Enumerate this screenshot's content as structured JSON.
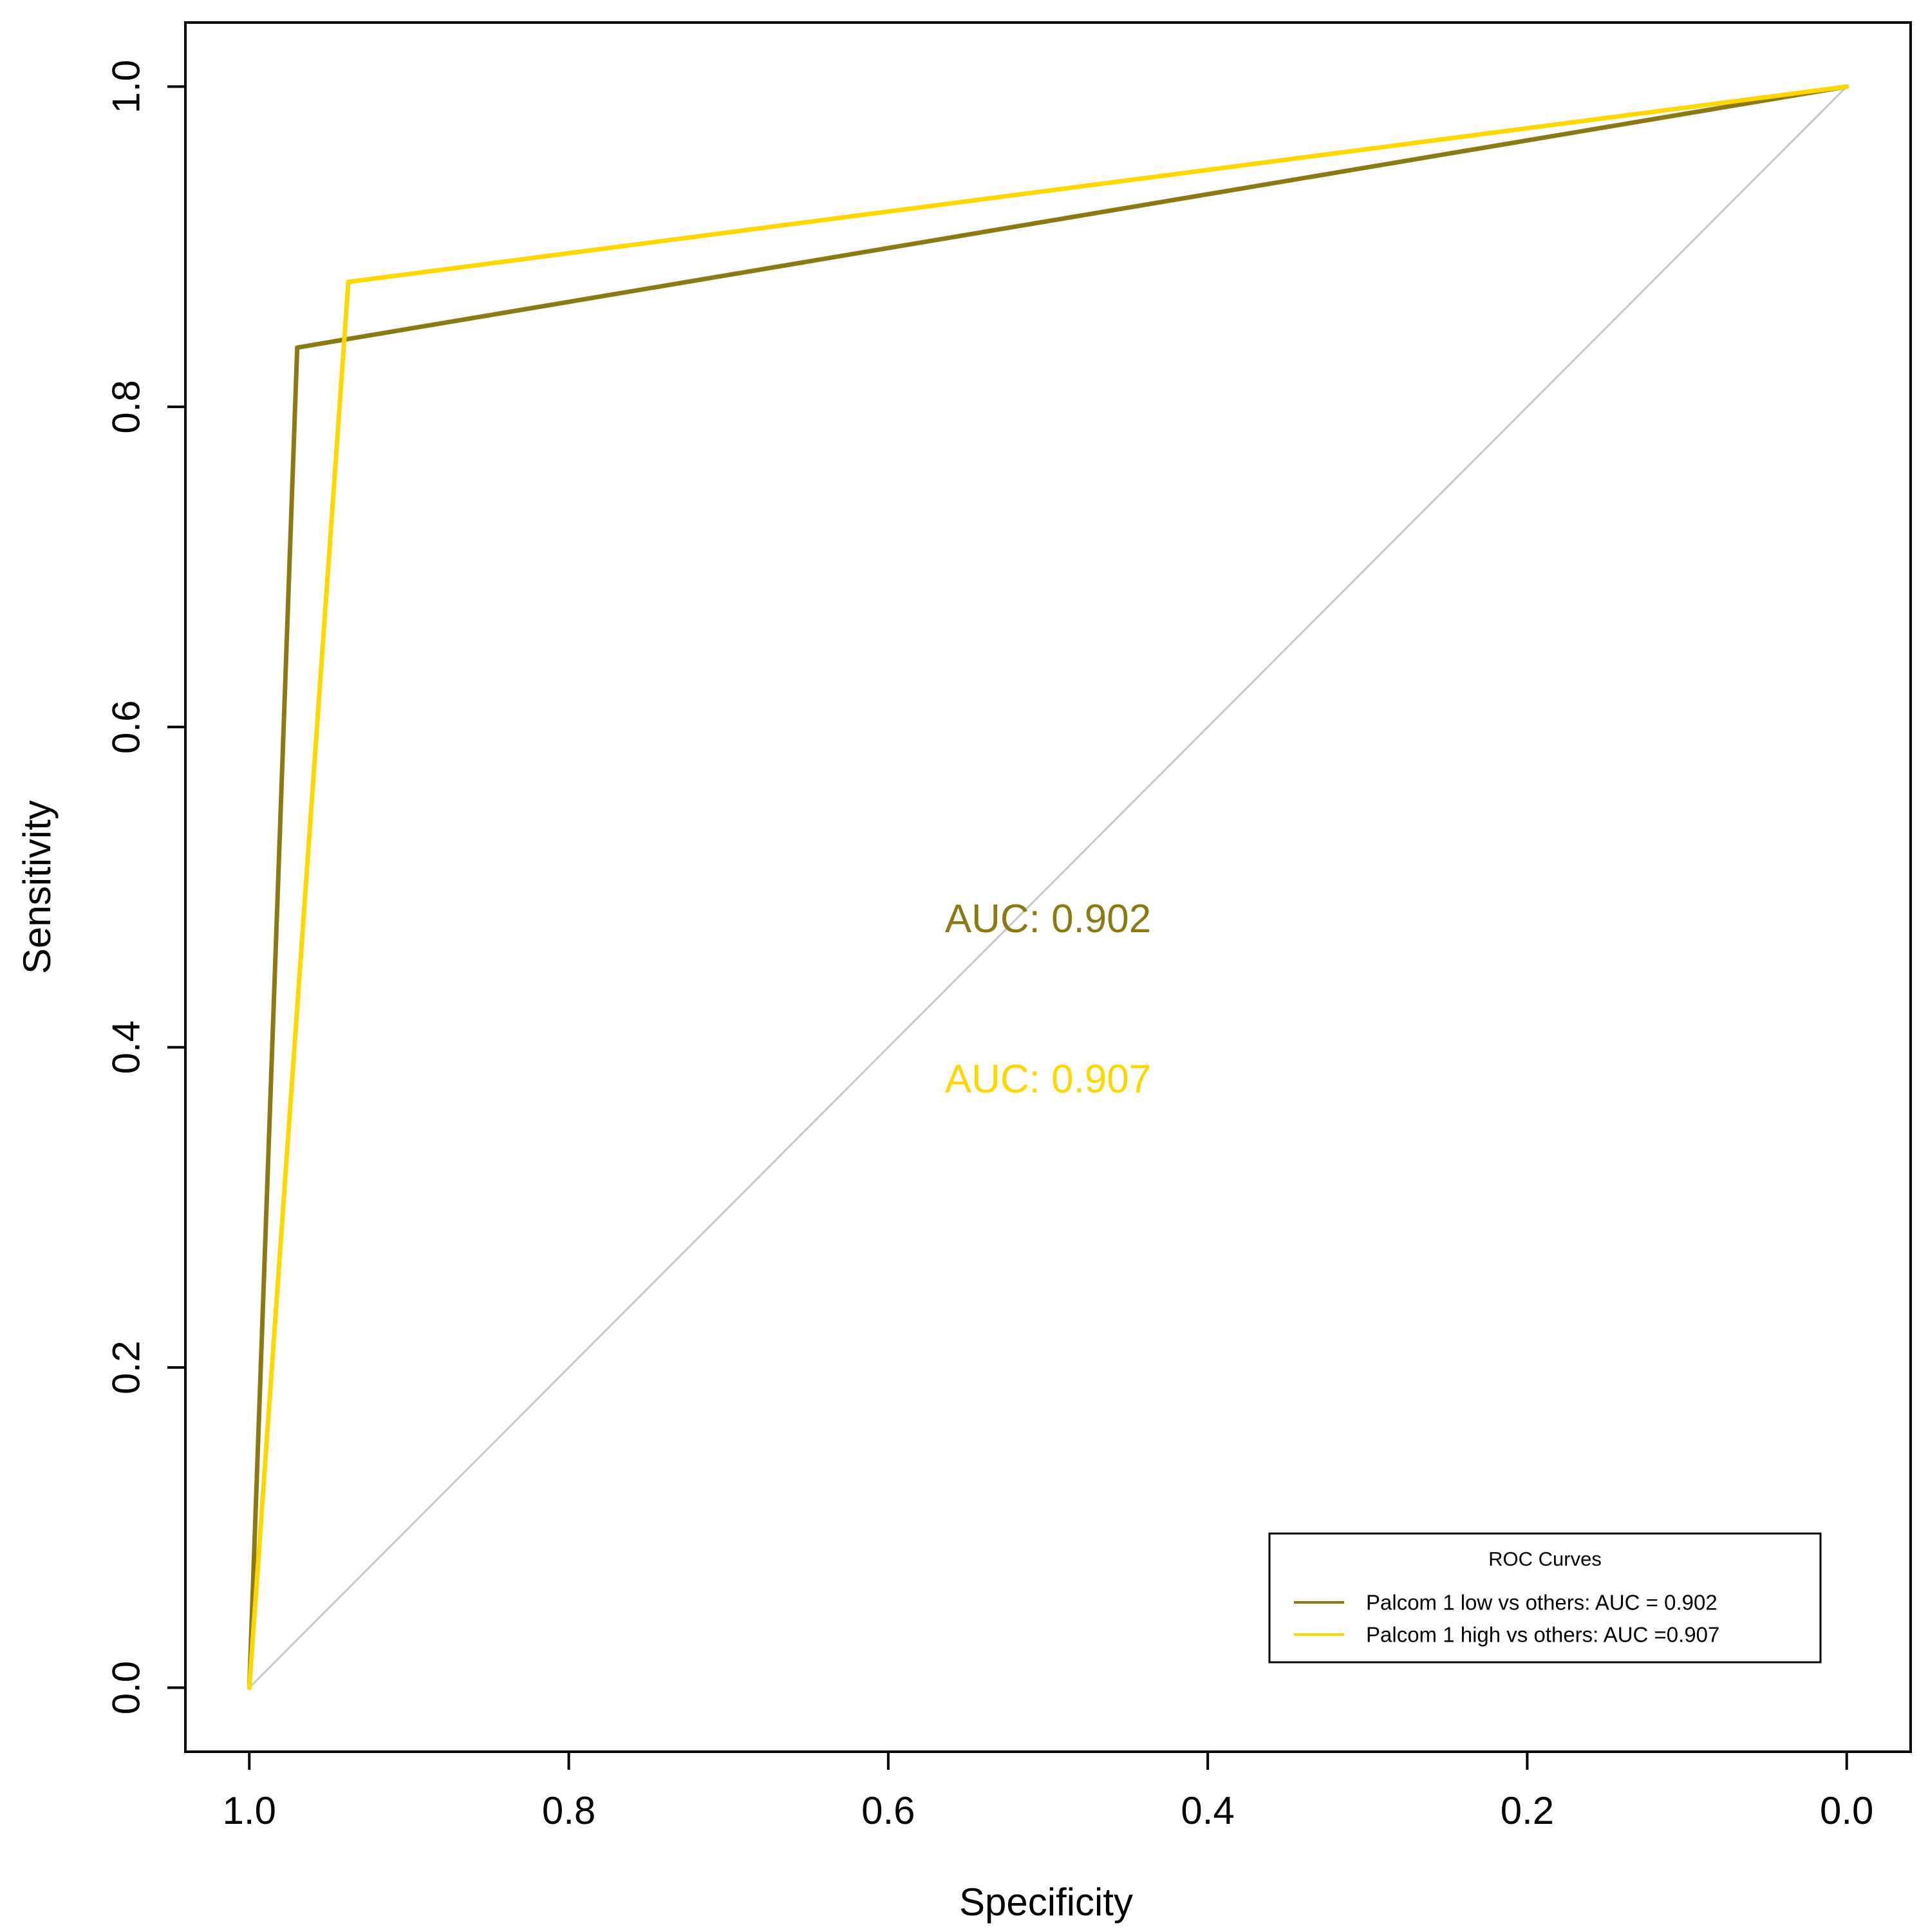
{
  "chart_data": {
    "type": "line",
    "xlabel": "Specificity",
    "ylabel": "Sensitivity",
    "xlim": [
      1.04,
      -0.04
    ],
    "ylim": [
      -0.04,
      1.04
    ],
    "x_reversed": true,
    "x_ticks": [
      "1.0",
      "0.8",
      "0.6",
      "0.4",
      "0.2",
      "0.0"
    ],
    "y_ticks": [
      "0.0",
      "0.2",
      "0.4",
      "0.6",
      "0.8",
      "1.0"
    ],
    "grid": false,
    "reference_line": {
      "x": [
        1,
        0
      ],
      "y": [
        0,
        1
      ],
      "color": "#c8c8c8"
    },
    "series": [
      {
        "name": "Palcom 1 low vs others: AUC = 0.902",
        "color": "#8b7a13",
        "x": [
          1.0,
          0.97,
          0.0
        ],
        "y": [
          0.0,
          0.837,
          1.0
        ]
      },
      {
        "name": "Palcom 1 high vs others: AUC =0.907",
        "color": "#ffd700",
        "x": [
          1.0,
          0.938,
          0.0
        ],
        "y": [
          0.0,
          0.878,
          1.0
        ]
      }
    ],
    "annotations": [
      {
        "text": "AUC: 0.902",
        "x": 0.5,
        "y": 0.48,
        "color": "#8b7a13"
      },
      {
        "text": "AUC: 0.907",
        "x": 0.5,
        "y": 0.38,
        "color": "#ffd700"
      }
    ],
    "legend": {
      "title": "ROC Curves",
      "position": "bottom-right"
    }
  }
}
